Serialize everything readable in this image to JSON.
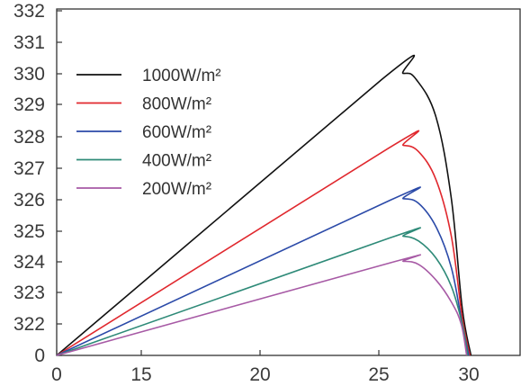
{
  "chart_data": {
    "type": "line",
    "title": "",
    "xlabel": "",
    "ylabel": "",
    "grid": false,
    "legend_position": "top-left",
    "x_ticks": [
      "0",
      "15",
      "20",
      "25",
      "30"
    ],
    "y_ticks": [
      "0",
      "322",
      "323",
      "324",
      "325",
      "326",
      "327",
      "328",
      "329",
      "330",
      "331",
      "332"
    ],
    "series": [
      {
        "name": "1000W/m²",
        "color": "#111111",
        "points": [
          {
            "x": "0",
            "y": "0"
          },
          {
            "x": "26",
            "y": "329.8"
          },
          {
            "x": "27",
            "y": "330"
          },
          {
            "x": "27.6",
            "y": "329.8"
          },
          {
            "x": "28.5",
            "y": "328.6"
          },
          {
            "x": "29.2",
            "y": "326"
          },
          {
            "x": "29.7",
            "y": "322.5"
          },
          {
            "x": "30.1",
            "y": "0"
          }
        ]
      },
      {
        "name": "800W/m²",
        "color": "#e0282e",
        "points": [
          {
            "x": "0",
            "y": "0"
          },
          {
            "x": "26.3",
            "y": "327.6"
          },
          {
            "x": "27",
            "y": "327.7"
          },
          {
            "x": "27.7",
            "y": "327.5"
          },
          {
            "x": "28.5",
            "y": "326.6"
          },
          {
            "x": "29.2",
            "y": "324.8"
          },
          {
            "x": "29.7",
            "y": "322.2"
          },
          {
            "x": "30.05",
            "y": "0"
          }
        ]
      },
      {
        "name": "600W/m²",
        "color": "#2b4aa8",
        "points": [
          {
            "x": "0",
            "y": "0"
          },
          {
            "x": "26.4",
            "y": "325.95"
          },
          {
            "x": "27",
            "y": "326"
          },
          {
            "x": "27.7",
            "y": "325.85"
          },
          {
            "x": "28.5",
            "y": "325.1"
          },
          {
            "x": "29.2",
            "y": "323.8"
          },
          {
            "x": "29.7",
            "y": "322.0"
          },
          {
            "x": "30.0",
            "y": "0"
          }
        ]
      },
      {
        "name": "400W/m²",
        "color": "#2e8a78",
        "points": [
          {
            "x": "0",
            "y": "0"
          },
          {
            "x": "26.4",
            "y": "324.75"
          },
          {
            "x": "27",
            "y": "324.8"
          },
          {
            "x": "27.7",
            "y": "324.65"
          },
          {
            "x": "28.5",
            "y": "324.1"
          },
          {
            "x": "29.2",
            "y": "323.2"
          },
          {
            "x": "29.7",
            "y": "321.9"
          },
          {
            "x": "29.95",
            "y": "0"
          }
        ]
      },
      {
        "name": "200W/m²",
        "color": "#a75aa5",
        "points": [
          {
            "x": "0",
            "y": "0"
          },
          {
            "x": "26.4",
            "y": "323.95"
          },
          {
            "x": "27",
            "y": "324"
          },
          {
            "x": "27.7",
            "y": "323.9"
          },
          {
            "x": "28.5",
            "y": "323.4"
          },
          {
            "x": "29.2",
            "y": "322.7"
          },
          {
            "x": "29.65",
            "y": "321.8"
          },
          {
            "x": "29.9",
            "y": "0"
          }
        ]
      }
    ]
  }
}
